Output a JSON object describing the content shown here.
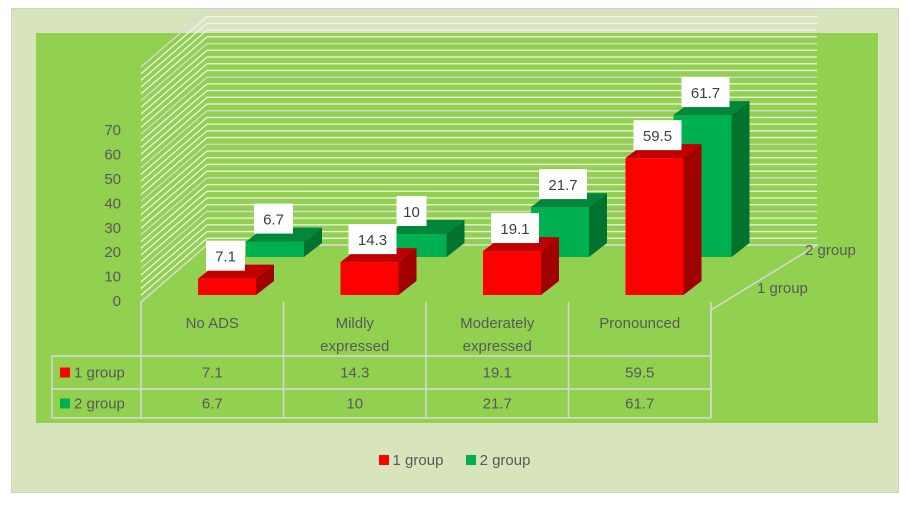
{
  "chart_data": {
    "type": "bar",
    "subtype": "3d-clustered-column-with-data-table",
    "title": "",
    "xlabel": "",
    "ylabel": "",
    "ylim": [
      0,
      70
    ],
    "yticks": [
      "0",
      "10",
      "20",
      "30",
      "40",
      "50",
      "60",
      "70"
    ],
    "grid": true,
    "categories": [
      "No ADS",
      "Mildly expressed",
      "Moderately expressed",
      "Pronounced"
    ],
    "categories_display": [
      [
        "No ADS"
      ],
      [
        "Mildly",
        "expressed"
      ],
      [
        "Moderately",
        "expressed"
      ],
      [
        "Pronounced"
      ]
    ],
    "depth_axis_labels": [
      "2 group",
      "1 group"
    ],
    "series": [
      {
        "name": "1 group",
        "values": [
          7.1,
          14.3,
          19.1,
          59.5
        ],
        "labels": [
          "7.1",
          "14.3",
          "19.1",
          "59.5"
        ],
        "color": "#ff0000"
      },
      {
        "name": "2 group",
        "values": [
          6.7,
          10,
          21.7,
          61.7
        ],
        "labels": [
          "6.7",
          "10",
          "21.7",
          "61.7"
        ],
        "color": "#00b050"
      }
    ],
    "legend": {
      "position": "bottom",
      "entries": [
        "1 group",
        "2 group"
      ]
    },
    "data_table": {
      "rows": [
        {
          "series": "1 group",
          "cells": [
            "7.1",
            "14.3",
            "19.1",
            "59.5"
          ]
        },
        {
          "series": "2 group",
          "cells": [
            "6.7",
            "10",
            "21.7",
            "61.7"
          ]
        }
      ]
    }
  },
  "colors": {
    "outer_background": "#d8e4bc",
    "plot_background": "#92d050",
    "series1_front": "#ff0000",
    "series1_top": "#c00000",
    "series1_side": "#a00000",
    "series2_front": "#00b050",
    "series2_top": "#00873c",
    "series2_side": "#00732f"
  }
}
